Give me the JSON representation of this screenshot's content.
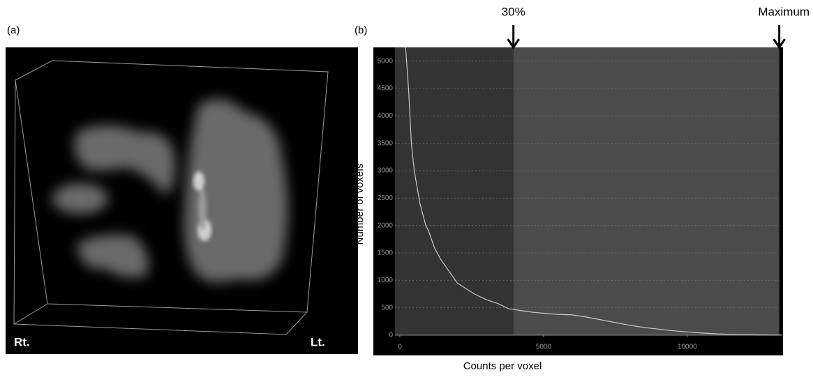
{
  "panel_a": {
    "label": "(a)",
    "left_label": "Rt.",
    "right_label": "Lt."
  },
  "chart_data": {
    "type": "line",
    "panel_label": "(b)",
    "x_label": "Counts per voxel",
    "y_label": "Number of voxels",
    "xlim": [
      -170,
      13330
    ],
    "ylim": [
      0,
      5250
    ],
    "xticks": [
      0,
      5000,
      10000
    ],
    "yticks": [
      0,
      500,
      1000,
      1500,
      2000,
      2500,
      3000,
      3500,
      4000,
      4500,
      5000
    ],
    "grid": true,
    "annotations": [
      {
        "text": "30%",
        "x": 3950
      },
      {
        "text": "Maximum",
        "x": 13200
      }
    ],
    "series": [
      {
        "color": "#c8c8c8",
        "x": [
          200,
          300,
          400,
          500,
          600,
          700,
          800,
          900,
          1000,
          1200,
          1400,
          1600,
          1800,
          2000,
          2300,
          2600,
          3000,
          3400,
          3800,
          4200,
          4600,
          5000,
          5500,
          6000,
          6500,
          7000,
          7500,
          8000,
          8500,
          9000,
          9500,
          10000,
          10500,
          11000,
          11500,
          12000,
          12500,
          13000,
          13300
        ],
        "values": [
          5250,
          4500,
          3500,
          3000,
          2700,
          2400,
          2200,
          2000,
          1900,
          1600,
          1400,
          1250,
          1100,
          950,
          850,
          750,
          650,
          580,
          480,
          450,
          420,
          400,
          380,
          370,
          330,
          280,
          230,
          180,
          140,
          110,
          80,
          60,
          40,
          25,
          15,
          10,
          5,
          3,
          2
        ]
      }
    ]
  }
}
